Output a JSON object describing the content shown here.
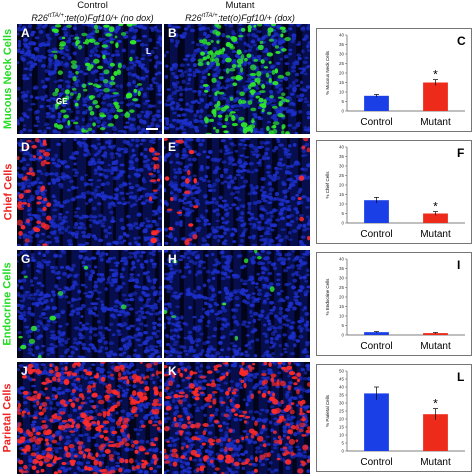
{
  "headers": {
    "control": {
      "title": "Control",
      "genotype_prefix": "R26",
      "genotype_sup": "rtTA/+",
      "genotype_suffix": ";tet(o)Fgf10/+ (no dox)"
    },
    "mutant": {
      "title": "Mutant",
      "genotype_prefix": "R26",
      "genotype_sup": "rtTA/+",
      "genotype_suffix": ";tet(o)Fgf10/+ (dox)"
    }
  },
  "rows": [
    {
      "label": "Mucous Neck Cells",
      "color": "#22dd22"
    },
    {
      "label": "Chief Cells",
      "color": "#ee2222"
    },
    {
      "label": "Endocrine Cells",
      "color": "#22dd22"
    },
    {
      "label": "Parietal Cells",
      "color": "#ee2222"
    }
  ],
  "panels": [
    "A",
    "B",
    "C",
    "D",
    "E",
    "F",
    "G",
    "H",
    "I",
    "J",
    "K",
    "L"
  ],
  "tissue_labels": {
    "lumen": "L",
    "gastric_epithelium": "GE"
  },
  "colors": {
    "control_bar": "#1a3fe6",
    "mutant_bar": "#ee2b1a",
    "nuclei": "#1c2fc9",
    "green_stain": "#2ee82e",
    "red_stain": "#ff2a2a"
  },
  "chart_data": [
    {
      "type": "bar",
      "panel": "C",
      "categories": [
        "Control",
        "Mutant"
      ],
      "values": [
        8.0,
        15.0
      ],
      "errors": [
        0.7,
        1.5
      ],
      "ylabel": "% Mucous Neck Cells",
      "ylim": [
        0,
        40
      ],
      "yticks": [
        0,
        5,
        10,
        15,
        20,
        25,
        30,
        35,
        40
      ],
      "significance": [
        "",
        "*"
      ]
    },
    {
      "type": "bar",
      "panel": "F",
      "categories": [
        "Control",
        "Mutant"
      ],
      "values": [
        12.0,
        5.0
      ],
      "errors": [
        1.5,
        1.0
      ],
      "ylabel": "% Chief Cells",
      "ylim": [
        0,
        40
      ],
      "yticks": [
        0,
        5,
        10,
        15,
        20,
        25,
        30,
        35,
        40
      ],
      "significance": [
        "",
        "*"
      ]
    },
    {
      "type": "bar",
      "panel": "I",
      "categories": [
        "Control",
        "Mutant"
      ],
      "values": [
        1.5,
        1.0
      ],
      "errors": [
        0.3,
        0.3
      ],
      "ylabel": "% Endocrine Cells",
      "ylim": [
        0,
        40
      ],
      "yticks": [
        0,
        5,
        10,
        15,
        20,
        25,
        30,
        35,
        40
      ],
      "significance": [
        "",
        ""
      ]
    },
    {
      "type": "bar",
      "panel": "L",
      "categories": [
        "Control",
        "Mutant"
      ],
      "values": [
        36.0,
        23.0
      ],
      "errors": [
        4.0,
        3.5
      ],
      "ylabel": "% Parietal Cells",
      "ylim": [
        0,
        50
      ],
      "yticks": [
        0,
        5,
        10,
        15,
        20,
        25,
        30,
        35,
        40,
        45,
        50
      ],
      "significance": [
        "",
        "*"
      ]
    }
  ]
}
